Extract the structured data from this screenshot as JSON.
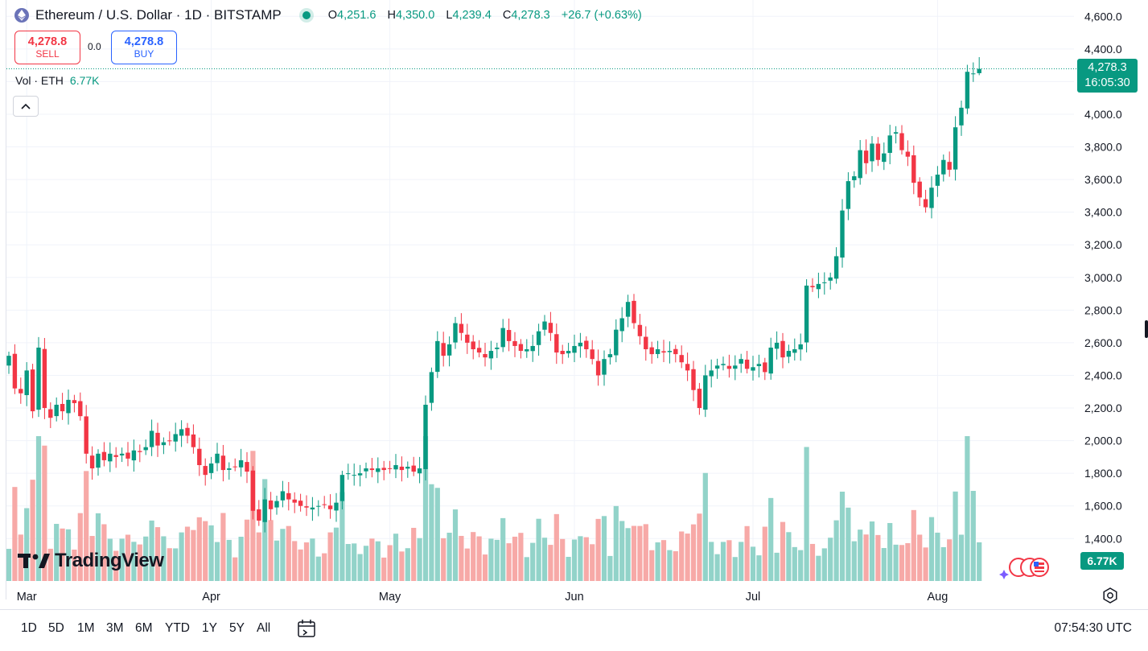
{
  "header": {
    "title": "Ethereum / U.S. Dollar · 1D · BITSTAMP",
    "ohlc": [
      {
        "k": "O",
        "v": "4,251.6"
      },
      {
        "k": "H",
        "v": "4,350.0"
      },
      {
        "k": "L",
        "v": "4,239.4"
      },
      {
        "k": "C",
        "v": "4,278.3"
      }
    ],
    "change": "+26.7 (+0.63%)"
  },
  "trade": {
    "sell_price": "4,278.8",
    "sell_label": "SELL",
    "spread": "0.0",
    "buy_price": "4,278.8",
    "buy_label": "BUY"
  },
  "volume_legend": {
    "label": "Vol · ETH",
    "value": "6.77K"
  },
  "price_tag": {
    "price": "4,278.3",
    "countdown": "16:05:30"
  },
  "volume_tag": "6.77K",
  "logo_text": "TradingView",
  "toolbar": {
    "ranges": [
      "1D",
      "5D",
      "1M",
      "3M",
      "6M",
      "YTD",
      "1Y",
      "5Y",
      "All"
    ],
    "time": "07:54:30 UTC"
  },
  "colors": {
    "up": "#089981",
    "down": "#f23645",
    "vol_up": "#92d3c9",
    "vol_down": "#f7a9a7",
    "grid": "#f0f3fa"
  },
  "chart_data": {
    "type": "candlestick",
    "ylim": [
      1140,
      4700
    ],
    "y_ticks": [
      1400,
      1600,
      1800,
      2000,
      2200,
      2400,
      2600,
      2800,
      3000,
      3200,
      3400,
      3600,
      3800,
      4000,
      4200,
      4400,
      4600
    ],
    "y_tick_labels": [
      "1,400.0",
      "1,600.0",
      "1,800.0",
      "2,000.0",
      "2,200.0",
      "2,400.0",
      "2,600.0",
      "2,800.0",
      "3,000.0",
      "3,200.0",
      "3,400.0",
      "3,600.0",
      "3,800.0",
      "4,000.0",
      "4,200.0",
      "4,400.0",
      "4,600.0"
    ],
    "x_labels": [
      {
        "label": "Mar",
        "index": 3
      },
      {
        "label": "Apr",
        "index": 34
      },
      {
        "label": "May",
        "index": 64
      },
      {
        "label": "Jun",
        "index": 95
      },
      {
        "label": "Jul",
        "index": 125
      },
      {
        "label": "Aug",
        "index": 156
      }
    ],
    "last_price": 4278.3,
    "closes": [
      2520,
      2320,
      2290,
      2430,
      2180,
      2570,
      2200,
      2140,
      2220,
      2180,
      2250,
      2230,
      2150,
      1920,
      1830,
      1920,
      1880,
      1920,
      1900,
      1920,
      1890,
      1940,
      1930,
      1960,
      2060,
      1970,
      1990,
      2000,
      2040,
      2070,
      2030,
      1960,
      1850,
      1790,
      1860,
      1920,
      1820,
      1830,
      1840,
      1880,
      1810,
      1570,
      1510,
      1640,
      1580,
      1630,
      1690,
      1640,
      1620,
      1600,
      1590,
      1590,
      1600,
      1610,
      1580,
      1620,
      1790,
      1800,
      1790,
      1800,
      1830,
      1820,
      1830,
      1820,
      1830,
      1850,
      1820,
      1840,
      1810,
      1830,
      2220,
      2420,
      2610,
      2520,
      2590,
      2720,
      2660,
      2600,
      2560,
      2540,
      2510,
      2550,
      2570,
      2690,
      2610,
      2580,
      2550,
      2560,
      2580,
      2670,
      2730,
      2660,
      2540,
      2530,
      2550,
      2580,
      2600,
      2560,
      2500,
      2400,
      2500,
      2530,
      2680,
      2750,
      2850,
      2720,
      2640,
      2560,
      2530,
      2560,
      2540,
      2550,
      2530,
      2480,
      2430,
      2310,
      2200,
      2400,
      2430,
      2460,
      2470,
      2440,
      2460,
      2500,
      2440,
      2450,
      2470,
      2420,
      2570,
      2600,
      2510,
      2550,
      2560,
      2590,
      2950,
      2940,
      2960,
      2970,
      3000,
      3130,
      3410,
      3590,
      3620,
      3780,
      3700,
      3820,
      3720,
      3760,
      3870,
      3890,
      3780,
      3740,
      3580,
      3490,
      3430,
      3550,
      3630,
      3720,
      3660,
      3920,
      4040,
      4260,
      4250,
      4278
    ]
  }
}
